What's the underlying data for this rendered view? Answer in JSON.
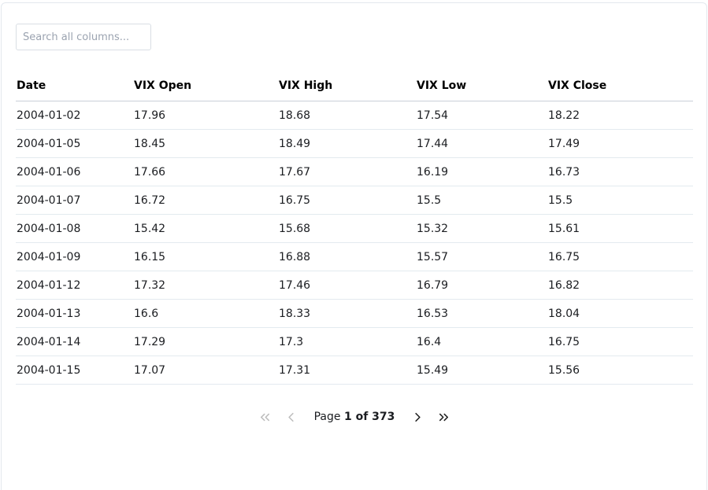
{
  "search": {
    "placeholder": "Search all columns..."
  },
  "table": {
    "columns": [
      "Date",
      "VIX Open",
      "VIX High",
      "VIX Low",
      "VIX Close"
    ],
    "rows": [
      [
        "2004-01-02",
        "17.96",
        "18.68",
        "17.54",
        "18.22"
      ],
      [
        "2004-01-05",
        "18.45",
        "18.49",
        "17.44",
        "17.49"
      ],
      [
        "2004-01-06",
        "17.66",
        "17.67",
        "16.19",
        "16.73"
      ],
      [
        "2004-01-07",
        "16.72",
        "16.75",
        "15.5",
        "15.5"
      ],
      [
        "2004-01-08",
        "15.42",
        "15.68",
        "15.32",
        "15.61"
      ],
      [
        "2004-01-09",
        "16.15",
        "16.88",
        "15.57",
        "16.75"
      ],
      [
        "2004-01-12",
        "17.32",
        "17.46",
        "16.79",
        "16.82"
      ],
      [
        "2004-01-13",
        "16.6",
        "18.33",
        "16.53",
        "18.04"
      ],
      [
        "2004-01-14",
        "17.29",
        "17.3",
        "16.4",
        "16.75"
      ],
      [
        "2004-01-15",
        "17.07",
        "17.31",
        "15.49",
        "15.56"
      ]
    ]
  },
  "pagination": {
    "label_prefix": "Page",
    "current_page_text": "1 of 373",
    "icons": {
      "first": "chevrons-left-icon",
      "previous": "chevron-left-icon",
      "next": "chevron-right-icon",
      "last": "chevrons-right-icon"
    },
    "first_disabled": true,
    "previous_disabled": true,
    "next_disabled": false,
    "last_disabled": false
  },
  "colors": {
    "card_border": "#e3e8ee",
    "header_border": "#c9cfd8",
    "row_border": "#e3eaef",
    "disabled_icon": "#bdbdbd",
    "enabled_icon": "#1f1f1f",
    "placeholder_text": "#9ba3b0"
  }
}
